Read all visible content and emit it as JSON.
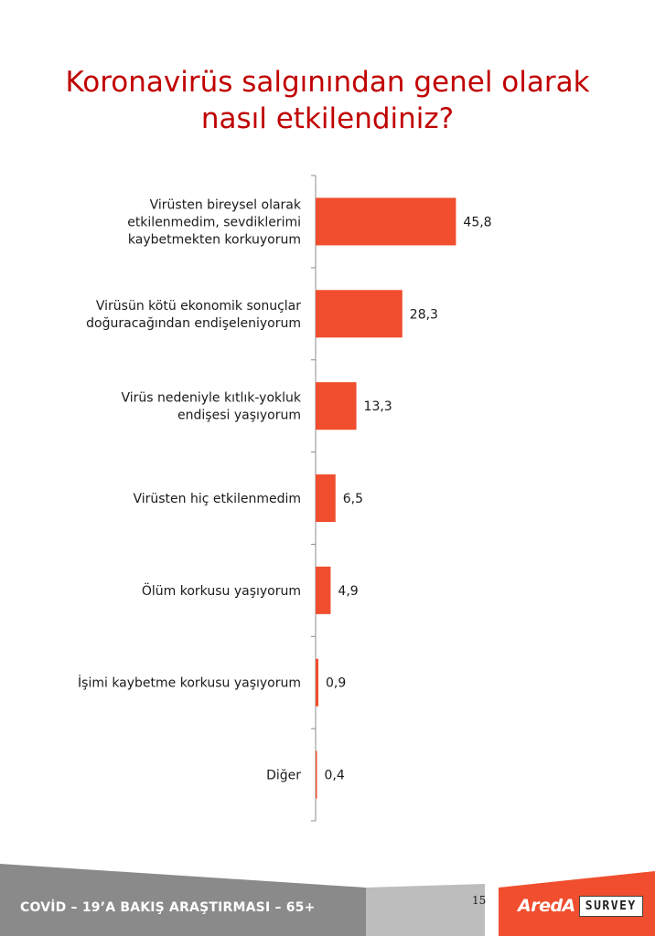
{
  "chart_data": {
    "type": "bar",
    "orientation": "horizontal",
    "title": "Koronavirüs salgınından genel olarak nasıl etkilendiniz?",
    "title_lines": [
      "Koronavirüs salgınından genel olarak",
      "nasıl etkilendiniz?"
    ],
    "categories": [
      [
        "Virüsten bireysel olarak",
        "etkilenmedim, sevdiklerimi",
        "kaybetmekten korkuyorum"
      ],
      [
        "Virüsün kötü ekonomik sonuçlar",
        "doğuracağından endişeleniyorum"
      ],
      [
        "Virüs nedeniyle kıtlık-yokluk",
        "endişesi yaşıyorum"
      ],
      [
        "Virüsten hiç etkilenmedim"
      ],
      [
        "Ölüm korkusu yaşıyorum"
      ],
      [
        "İşimi kaybetme korkusu yaşıyorum"
      ],
      [
        "Diğer"
      ]
    ],
    "values": [
      45.8,
      28.3,
      13.3,
      6.5,
      4.9,
      0.9,
      0.4
    ],
    "value_labels": [
      "45,8",
      "28,3",
      "13,3",
      "6,5",
      "4,9",
      "0,9",
      "0,4"
    ],
    "xlim": [
      0,
      100
    ],
    "grid": false,
    "bar_color": "#f04e2e"
  },
  "footer": {
    "survey_title": "COVİD – 19’A  BAKIŞ ARAŞTIRMASI – 65+",
    "page_number": "15",
    "logo_brand": "AredA",
    "logo_survey": "SURVEY",
    "colors": {
      "gray": "#888888",
      "light_gray": "#bdbdbd",
      "orange": "#f04e2e"
    }
  }
}
